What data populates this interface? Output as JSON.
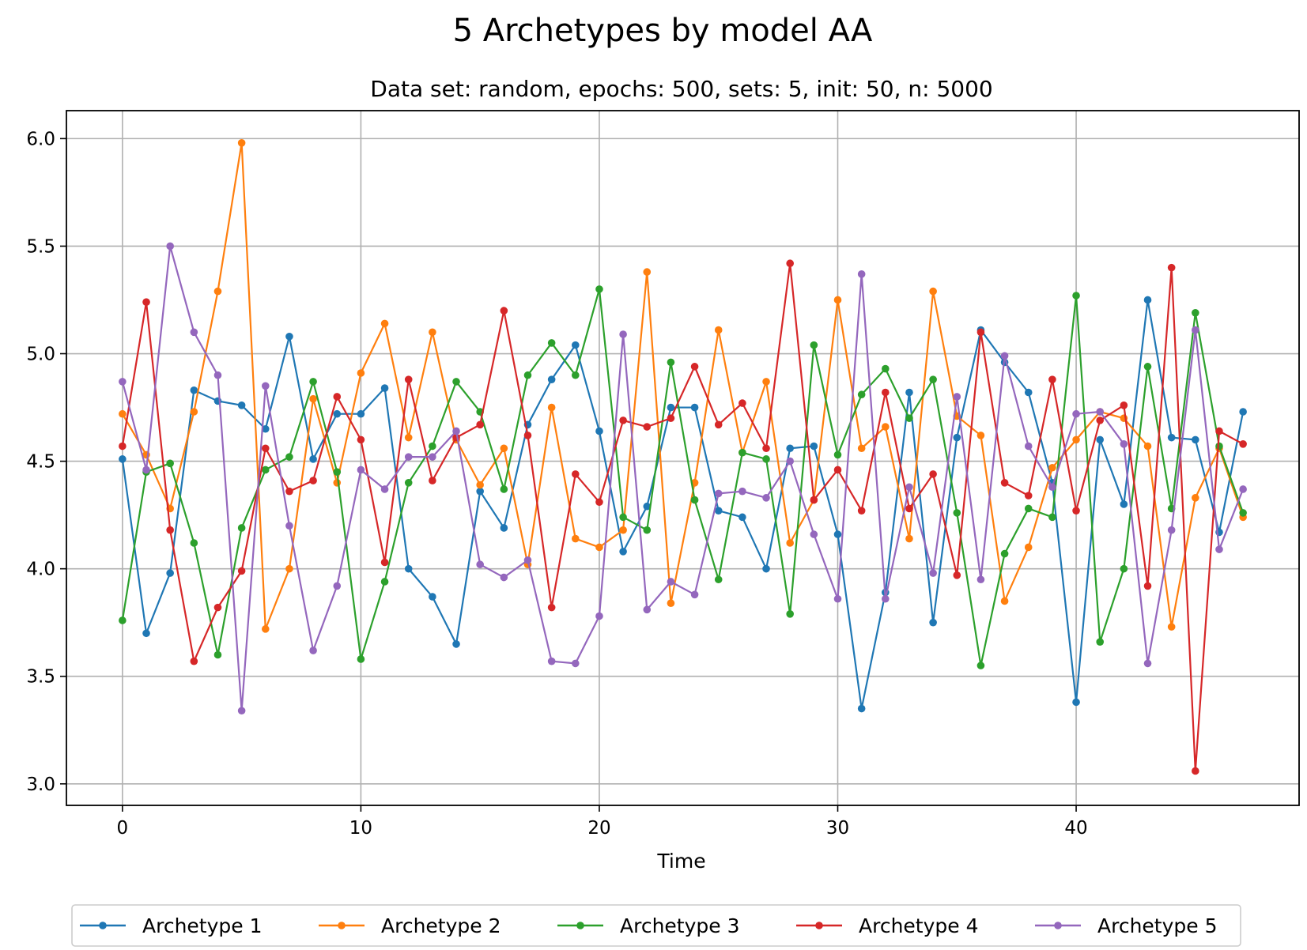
{
  "chart_data": {
    "type": "line",
    "title": "5 Archetypes by model AA",
    "subtitle": "Data set: random, epochs: 500, sets: 5, init: 50, n: 5000",
    "xlabel": "Time",
    "ylabel": "",
    "xlim": [
      -2.35,
      49.35
    ],
    "ylim": [
      2.9,
      6.13
    ],
    "xticks": [
      0,
      10,
      20,
      30,
      40
    ],
    "yticks": [
      3.0,
      3.5,
      4.0,
      4.5,
      5.0,
      5.5,
      6.0
    ],
    "grid": true,
    "legend_position": "bottom-center",
    "markers": true,
    "x": [
      0,
      1,
      2,
      3,
      4,
      5,
      6,
      7,
      8,
      9,
      10,
      11,
      12,
      13,
      14,
      15,
      16,
      17,
      18,
      19,
      20,
      21,
      22,
      23,
      24,
      25,
      26,
      27,
      28,
      29,
      30,
      31,
      32,
      33,
      34,
      35,
      36,
      37,
      38,
      39,
      40,
      41,
      42,
      43,
      44,
      45,
      46,
      47
    ],
    "series": [
      {
        "name": "Archetype 1",
        "color": "#1f77b4",
        "values": [
          4.51,
          3.7,
          3.98,
          4.83,
          4.78,
          4.76,
          4.65,
          5.08,
          4.51,
          4.72,
          4.72,
          4.84,
          4.0,
          3.87,
          3.65,
          4.36,
          4.19,
          4.67,
          4.88,
          5.04,
          4.64,
          4.08,
          4.29,
          4.75,
          4.75,
          4.27,
          4.24,
          4.0,
          4.56,
          4.57,
          4.16,
          3.35,
          3.89,
          4.82,
          3.75,
          4.61,
          5.11,
          4.96,
          4.82,
          4.4,
          3.38,
          4.6,
          4.3,
          5.25,
          4.61,
          4.6,
          4.17,
          4.73
        ]
      },
      {
        "name": "Archetype 2",
        "color": "#ff7f0e",
        "values": [
          4.72,
          4.53,
          4.28,
          4.73,
          5.29,
          5.98,
          3.72,
          4.0,
          4.79,
          4.4,
          4.91,
          5.14,
          4.61,
          5.1,
          4.6,
          4.39,
          4.56,
          4.02,
          4.75,
          4.14,
          4.1,
          4.18,
          5.38,
          3.84,
          4.4,
          5.11,
          4.54,
          4.87,
          4.12,
          4.32,
          5.25,
          4.56,
          4.66,
          4.14,
          5.29,
          4.71,
          4.62,
          3.85,
          4.1,
          4.47,
          4.6,
          4.73,
          4.7,
          4.57,
          3.73,
          4.33,
          4.56,
          4.24
        ]
      },
      {
        "name": "Archetype 3",
        "color": "#2ca02c",
        "values": [
          3.76,
          4.45,
          4.49,
          4.12,
          3.6,
          4.19,
          4.46,
          4.52,
          4.87,
          4.45,
          3.58,
          3.94,
          4.4,
          4.57,
          4.87,
          4.73,
          4.37,
          4.9,
          5.05,
          4.9,
          5.3,
          4.24,
          4.18,
          4.96,
          4.32,
          3.95,
          4.54,
          4.51,
          3.79,
          5.04,
          4.53,
          4.81,
          4.93,
          4.7,
          4.88,
          4.26,
          3.55,
          4.07,
          4.28,
          4.24,
          5.27,
          3.66,
          4.0,
          4.94,
          4.28,
          5.19,
          4.57,
          4.26
        ]
      },
      {
        "name": "Archetype 4",
        "color": "#d62728",
        "values": [
          4.57,
          5.24,
          4.18,
          3.57,
          3.82,
          3.99,
          4.56,
          4.36,
          4.41,
          4.8,
          4.6,
          4.03,
          4.88,
          4.41,
          4.61,
          4.67,
          5.2,
          4.62,
          3.82,
          4.44,
          4.31,
          4.69,
          4.66,
          4.7,
          4.94,
          4.67,
          4.77,
          4.56,
          5.42,
          4.32,
          4.46,
          4.27,
          4.82,
          4.28,
          4.44,
          3.97,
          5.1,
          4.4,
          4.34,
          4.88,
          4.27,
          4.69,
          4.76,
          3.92,
          5.4,
          3.06,
          4.64,
          4.58
        ]
      },
      {
        "name": "Archetype 5",
        "color": "#9467bd",
        "values": [
          4.87,
          4.46,
          5.5,
          5.1,
          4.9,
          3.34,
          4.85,
          4.2,
          3.62,
          3.92,
          4.46,
          4.37,
          4.52,
          4.52,
          4.64,
          4.02,
          3.96,
          4.04,
          3.57,
          3.56,
          3.78,
          5.09,
          3.81,
          3.94,
          3.88,
          4.35,
          4.36,
          4.33,
          4.5,
          4.16,
          3.86,
          5.37,
          3.86,
          4.38,
          3.98,
          4.8,
          3.95,
          4.99,
          4.57,
          4.38,
          4.72,
          4.73,
          4.58,
          3.56,
          4.18,
          5.11,
          4.09,
          4.37
        ]
      }
    ]
  }
}
